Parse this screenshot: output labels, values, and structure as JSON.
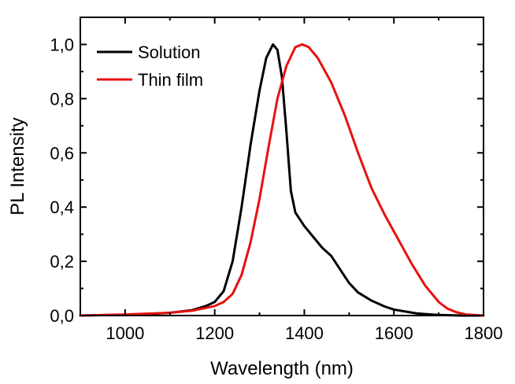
{
  "chart_data": {
    "type": "line",
    "xlabel": "Wavelength (nm)",
    "ylabel": "PL Intensity",
    "xlim": [
      900,
      1800
    ],
    "ylim": [
      0,
      1.1
    ],
    "x_ticks": [
      1000,
      1200,
      1400,
      1600,
      1800
    ],
    "x_tick_labels": [
      "1000",
      "1200",
      "1400",
      "1600",
      "1800"
    ],
    "y_ticks": [
      0,
      0.2,
      0.4,
      0.6,
      0.8,
      1.0
    ],
    "y_tick_labels": [
      "0,0",
      "0,2",
      "0,4",
      "0,6",
      "0,8",
      "1,0"
    ],
    "grid": false,
    "legend_position": "top-left",
    "series": [
      {
        "name": "Solution",
        "color": "#000000",
        "points": [
          [
            900,
            0.0
          ],
          [
            1000,
            0.003
          ],
          [
            1050,
            0.005
          ],
          [
            1100,
            0.01
          ],
          [
            1150,
            0.02
          ],
          [
            1180,
            0.035
          ],
          [
            1200,
            0.05
          ],
          [
            1220,
            0.09
          ],
          [
            1240,
            0.2
          ],
          [
            1260,
            0.4
          ],
          [
            1280,
            0.63
          ],
          [
            1300,
            0.83
          ],
          [
            1315,
            0.95
          ],
          [
            1330,
            1.0
          ],
          [
            1340,
            0.98
          ],
          [
            1350,
            0.88
          ],
          [
            1360,
            0.68
          ],
          [
            1370,
            0.46
          ],
          [
            1380,
            0.38
          ],
          [
            1400,
            0.33
          ],
          [
            1420,
            0.29
          ],
          [
            1440,
            0.25
          ],
          [
            1460,
            0.22
          ],
          [
            1480,
            0.17
          ],
          [
            1500,
            0.12
          ],
          [
            1520,
            0.085
          ],
          [
            1550,
            0.055
          ],
          [
            1580,
            0.033
          ],
          [
            1600,
            0.022
          ],
          [
            1650,
            0.008
          ],
          [
            1700,
            0.002
          ],
          [
            1750,
            0.0
          ],
          [
            1800,
            0.0
          ]
        ]
      },
      {
        "name": "Thin film",
        "color": "#e81010",
        "points": [
          [
            900,
            0.0
          ],
          [
            1000,
            0.004
          ],
          [
            1100,
            0.01
          ],
          [
            1150,
            0.018
          ],
          [
            1200,
            0.035
          ],
          [
            1220,
            0.05
          ],
          [
            1240,
            0.08
          ],
          [
            1260,
            0.15
          ],
          [
            1280,
            0.27
          ],
          [
            1300,
            0.43
          ],
          [
            1320,
            0.62
          ],
          [
            1340,
            0.8
          ],
          [
            1360,
            0.92
          ],
          [
            1380,
            0.99
          ],
          [
            1395,
            1.0
          ],
          [
            1410,
            0.99
          ],
          [
            1430,
            0.95
          ],
          [
            1460,
            0.86
          ],
          [
            1490,
            0.74
          ],
          [
            1520,
            0.6
          ],
          [
            1550,
            0.47
          ],
          [
            1580,
            0.37
          ],
          [
            1610,
            0.28
          ],
          [
            1640,
            0.19
          ],
          [
            1670,
            0.11
          ],
          [
            1700,
            0.05
          ],
          [
            1720,
            0.025
          ],
          [
            1740,
            0.012
          ],
          [
            1760,
            0.004
          ],
          [
            1800,
            0.0
          ]
        ]
      }
    ]
  }
}
